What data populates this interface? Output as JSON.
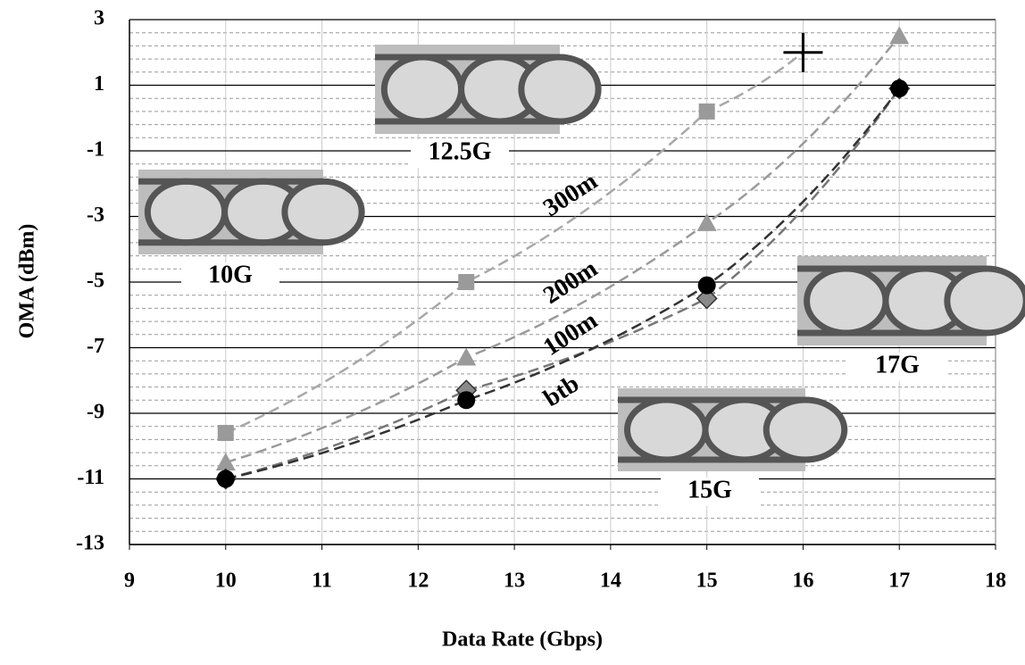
{
  "chart_data": {
    "type": "scatter",
    "x_label": "Data Rate (Gbps)",
    "y_label": "OMA (dBm)",
    "xlim": [
      9,
      18
    ],
    "xticks": [
      9,
      10,
      11,
      12,
      13,
      14,
      15,
      16,
      17,
      18
    ],
    "ylim": [
      -13,
      3
    ],
    "yticks": [
      -13,
      -11,
      -9,
      -7,
      -5,
      -3,
      -1,
      1,
      3
    ],
    "grid": true,
    "minor_grid": true,
    "series": [
      {
        "name": "300m",
        "color": "#9a9a9a",
        "line_color": "#a8a8a8",
        "x": [
          10,
          12.5,
          15,
          16
        ],
        "values": [
          -9.6,
          -5.0,
          0.2,
          2.0
        ],
        "markers": [
          "square",
          "square",
          "square",
          "plus"
        ]
      },
      {
        "name": "200m",
        "color": "#9a9a9a",
        "line_color": "#9a9a9a",
        "x": [
          10,
          12.5,
          15,
          17
        ],
        "values": [
          -10.5,
          -7.3,
          -3.2,
          2.5
        ],
        "markers": [
          "triangle",
          "triangle",
          "triangle",
          "triangle"
        ]
      },
      {
        "name": "100m",
        "color": "#8a8a8a",
        "line_color": "#777777",
        "x": [
          10,
          12.5,
          15,
          17
        ],
        "values": [
          -11.0,
          -8.3,
          -5.5,
          0.9
        ],
        "markers": [
          "diamond",
          "diamond",
          "diamond",
          "diamond"
        ]
      },
      {
        "name": "btb",
        "color": "#000000",
        "line_color": "#333333",
        "x": [
          10,
          12.5,
          15,
          17
        ],
        "values": [
          -11.0,
          -8.6,
          -5.1,
          0.9
        ],
        "markers": [
          "circle",
          "circle",
          "circle",
          "circle"
        ]
      }
    ],
    "annotations": [
      "12.5G",
      "10G",
      "17G",
      "15G"
    ]
  }
}
